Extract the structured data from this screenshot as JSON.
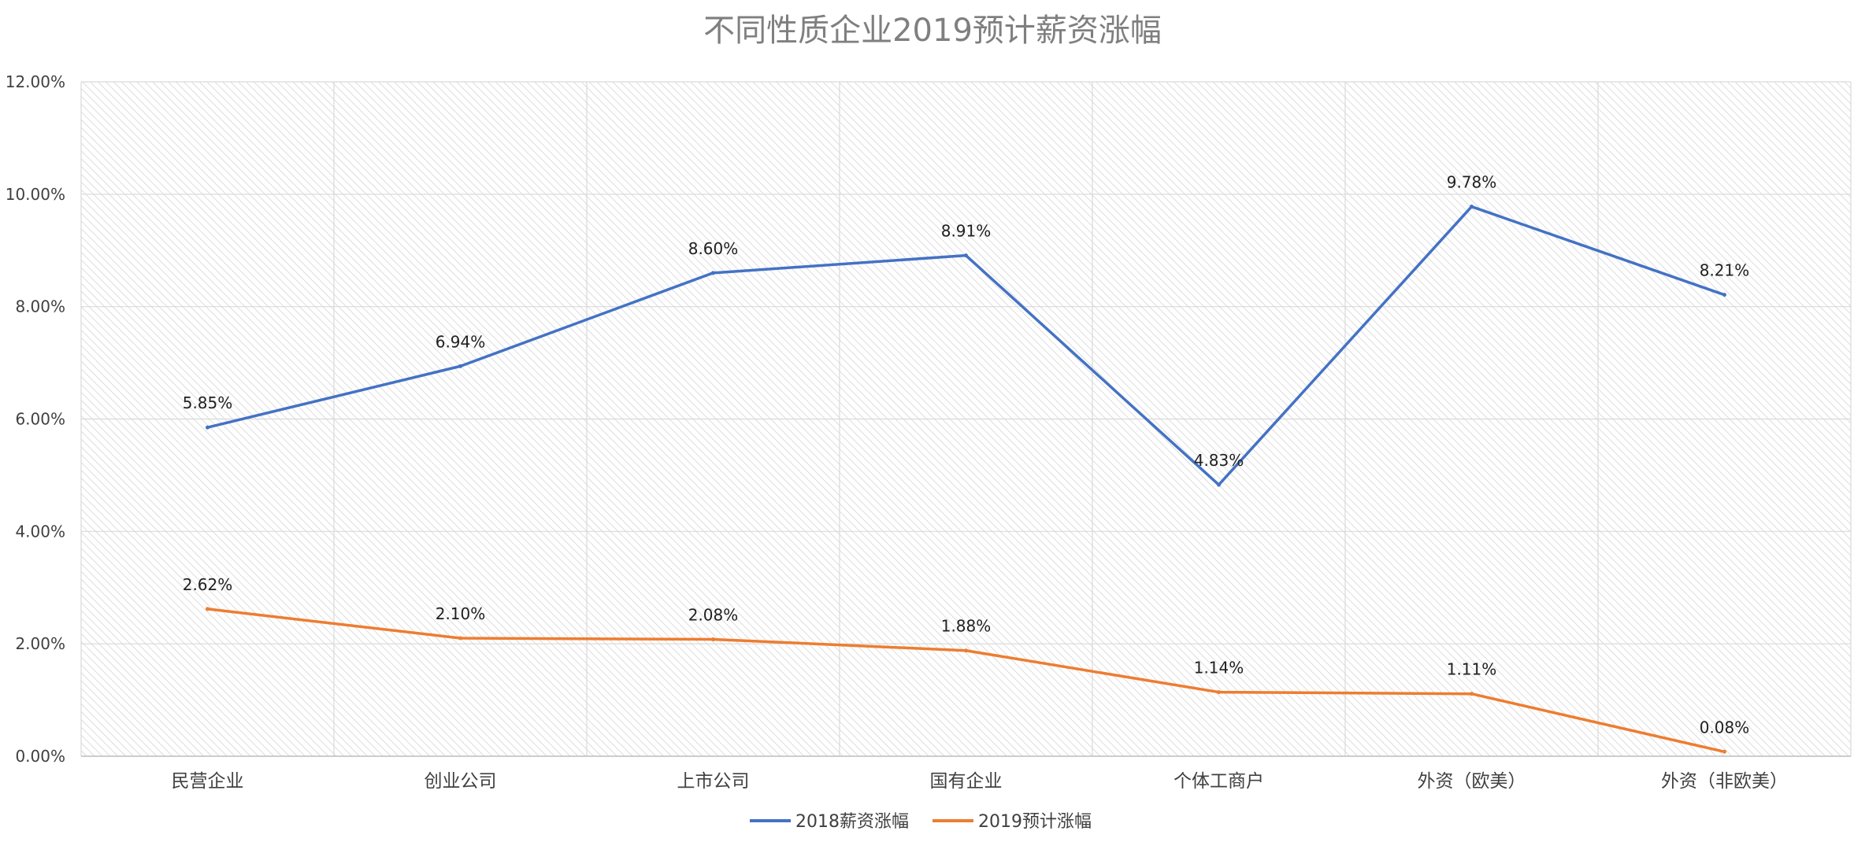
{
  "chart_data": {
    "type": "line",
    "title": "不同性质企业2019预计薪资涨幅",
    "xlabel": "",
    "ylabel": "",
    "categories": [
      "民营企业",
      "创业公司",
      "上市公司",
      "国有企业",
      "个体工商户",
      "外资（欧美）",
      "外资（非欧美）"
    ],
    "ylim": [
      0,
      12
    ],
    "yticks": [
      0,
      2,
      4,
      6,
      8,
      10,
      12
    ],
    "ytick_labels": [
      "0.00%",
      "2.00%",
      "4.00%",
      "6.00%",
      "8.00%",
      "10.00%",
      "12.00%"
    ],
    "grid": true,
    "legend_position": "bottom",
    "series": [
      {
        "name": "2018薪资涨幅",
        "color": "#4472c4",
        "values": [
          5.85,
          6.94,
          8.6,
          8.91,
          4.83,
          9.78,
          8.21
        ],
        "labels": [
          "5.85%",
          "6.94%",
          "8.60%",
          "8.91%",
          "4.83%",
          "9.78%",
          "8.21%"
        ]
      },
      {
        "name": "2019预计涨幅",
        "color": "#ed7d31",
        "values": [
          2.62,
          2.1,
          2.08,
          1.88,
          1.14,
          1.11,
          0.08
        ],
        "labels": [
          "2.62%",
          "2.10%",
          "2.08%",
          "1.88%",
          "1.14%",
          "1.11%",
          "0.08%"
        ]
      }
    ]
  }
}
